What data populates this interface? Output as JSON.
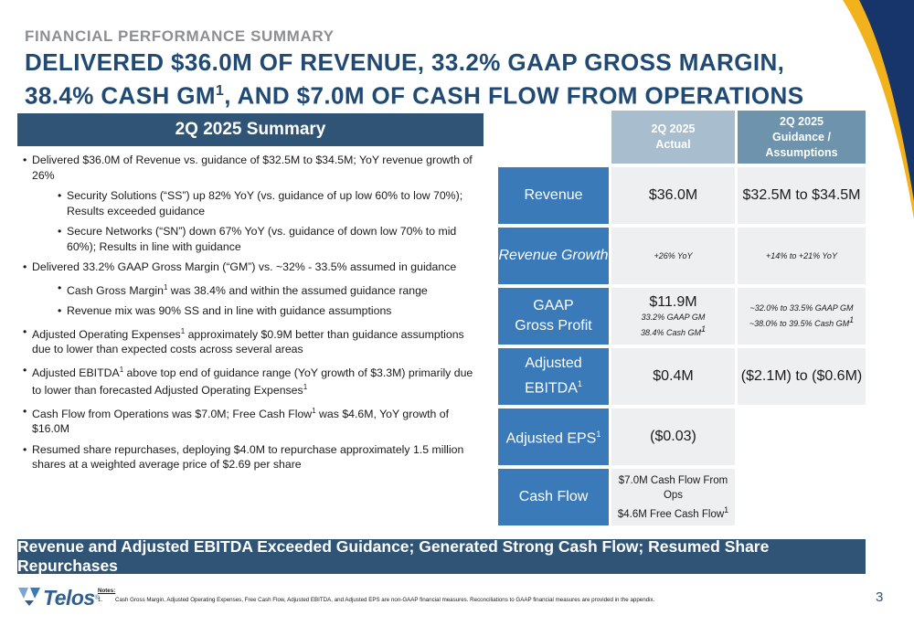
{
  "header": {
    "eyebrow": "FINANCIAL PERFORMANCE SUMMARY",
    "title_line1": "DELIVERED $36.0M OF REVENUE, 33.2% GAAP GROSS MARGIN,",
    "title_line2a": "38.4% CASH GM",
    "title_line2_sup": "1",
    "title_line2b": ", AND $7.0M OF CASH FLOW FROM OPERATIONS"
  },
  "summary": {
    "title": "2Q 2025 Summary",
    "bullets": [
      {
        "level": 1,
        "parts": [
          {
            "t": "Delivered $36.0M of Revenue vs. guidance of $32.5M to $34.5M; YoY revenue growth of 26%"
          }
        ]
      },
      {
        "level": 2,
        "parts": [
          {
            "t": "Security Solutions (“SS”) up 82% YoY (vs. guidance of up low 60% to low 70%); Results exceeded guidance"
          }
        ]
      },
      {
        "level": 2,
        "parts": [
          {
            "t": "Secure Networks (“SN”) down 67% YoY (vs. guidance of down low 70% to mid 60%); Results in line with guidance"
          }
        ]
      },
      {
        "level": 1,
        "parts": [
          {
            "t": "Delivered 33.2% GAAP Gross Margin (“GM”) vs. ~32% - 33.5% assumed in guidance"
          }
        ]
      },
      {
        "level": 2,
        "parts": [
          {
            "t": "Cash Gross Margin"
          },
          {
            "sup": "1"
          },
          {
            "t": " was 38.4% and within the assumed guidance range"
          }
        ]
      },
      {
        "level": 2,
        "parts": [
          {
            "t": "Revenue mix was 90% SS and in line with guidance assumptions"
          }
        ]
      },
      {
        "level": 1,
        "parts": [
          {
            "t": "Adjusted Operating Expenses"
          },
          {
            "sup": "1"
          },
          {
            "t": " approximately $0.9M better than guidance assumptions due to lower than expected costs across several areas"
          }
        ]
      },
      {
        "level": 1,
        "parts": [
          {
            "t": "Adjusted EBITDA"
          },
          {
            "sup": "1"
          },
          {
            "t": " above top end of guidance range (YoY growth of $3.3M) primarily due to lower than forecasted Adjusted Operating Expenses"
          },
          {
            "sup": "1"
          }
        ]
      },
      {
        "level": 1,
        "parts": [
          {
            "t": "Cash Flow from Operations was $7.0M; Free Cash Flow"
          },
          {
            "sup": "1"
          },
          {
            "t": " was $4.6M, YoY growth of $16.0M"
          }
        ]
      },
      {
        "level": 1,
        "parts": [
          {
            "t": "Resumed share repurchases, deploying $4.0M to repurchase approximately 1.5 million shares at a weighted average price of $2.69 per share"
          }
        ]
      }
    ]
  },
  "table": {
    "col_actual_l1": "2Q 2025",
    "col_actual_l2": "Actual",
    "col_guidance_l1": "2Q 2025",
    "col_guidance_l2": "Guidance /",
    "col_guidance_l3": "Assumptions",
    "revenue": {
      "label": "Revenue",
      "actual": "$36.0M",
      "guidance": "$32.5M to $34.5M"
    },
    "growth": {
      "label": "Revenue Growth",
      "actual": "+26% YoY",
      "guidance": "+14% to +21% YoY"
    },
    "gp": {
      "label_l1": "GAAP",
      "label_l2": "Gross Profit",
      "actual": "$11.9M",
      "actual_sub1": "33.2% GAAP GM",
      "actual_sub2": "38.4% Cash GM",
      "sup": "1",
      "guidance_l1": "~32.0% to 33.5% GAAP GM",
      "guidance_l2": "~38.0% to 39.5% Cash GM"
    },
    "ebitda": {
      "label_l1": "Adjusted",
      "label_l2": "EBITDA",
      "sup": "1",
      "actual": "$0.4M",
      "guidance": "($2.1M) to ($0.6M)"
    },
    "eps": {
      "label": "Adjusted EPS",
      "sup": "1",
      "actual": "($0.03)"
    },
    "cashflow": {
      "label": "Cash Flow",
      "actual_l1": "$7.0M Cash Flow From Ops",
      "actual_l2": "$4.6M Free Cash Flow",
      "sup": "1"
    }
  },
  "banner": "Revenue and Adjusted EBITDA Exceeded Guidance; Generated Strong Cash Flow; Resumed Share Repurchases",
  "footer": {
    "logo_text": "Telos",
    "logo_mark": "®",
    "notes_title": "Notes:",
    "note_num": "1.",
    "note_text": "Cash Gross Margin, Adjusted Operating Expenses, Free Cash Flow, Adjusted EBITDA, and Adjusted EPS are non-GAAP financial measures. Reconciliations to GAAP financial measures are provided in the appendix.",
    "page": "3"
  },
  "colors": {
    "navy": "#2f5475",
    "blue": "#3b7ab9",
    "title_blue": "#204a73",
    "light_gray": "#eeeff0"
  },
  "icons": [
    "telos-logo-icon",
    "corner-swoosh-graphic"
  ]
}
